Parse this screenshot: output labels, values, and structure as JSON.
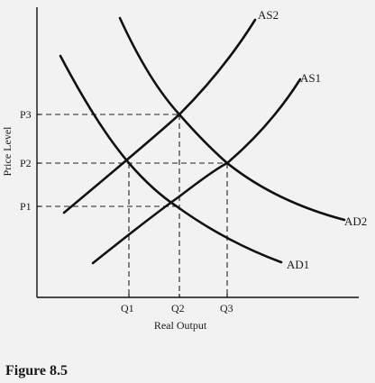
{
  "figure": {
    "caption": "Figure 8.5",
    "x_axis_label": "Real Output",
    "y_axis_label": "Price Level"
  },
  "price_levels": [
    "P1",
    "P2",
    "P3"
  ],
  "output_levels": [
    "Q1",
    "Q2",
    "Q3"
  ],
  "curves": {
    "as1": "AS1",
    "as2": "AS2",
    "ad1": "AD1",
    "ad2": "AD2"
  }
}
